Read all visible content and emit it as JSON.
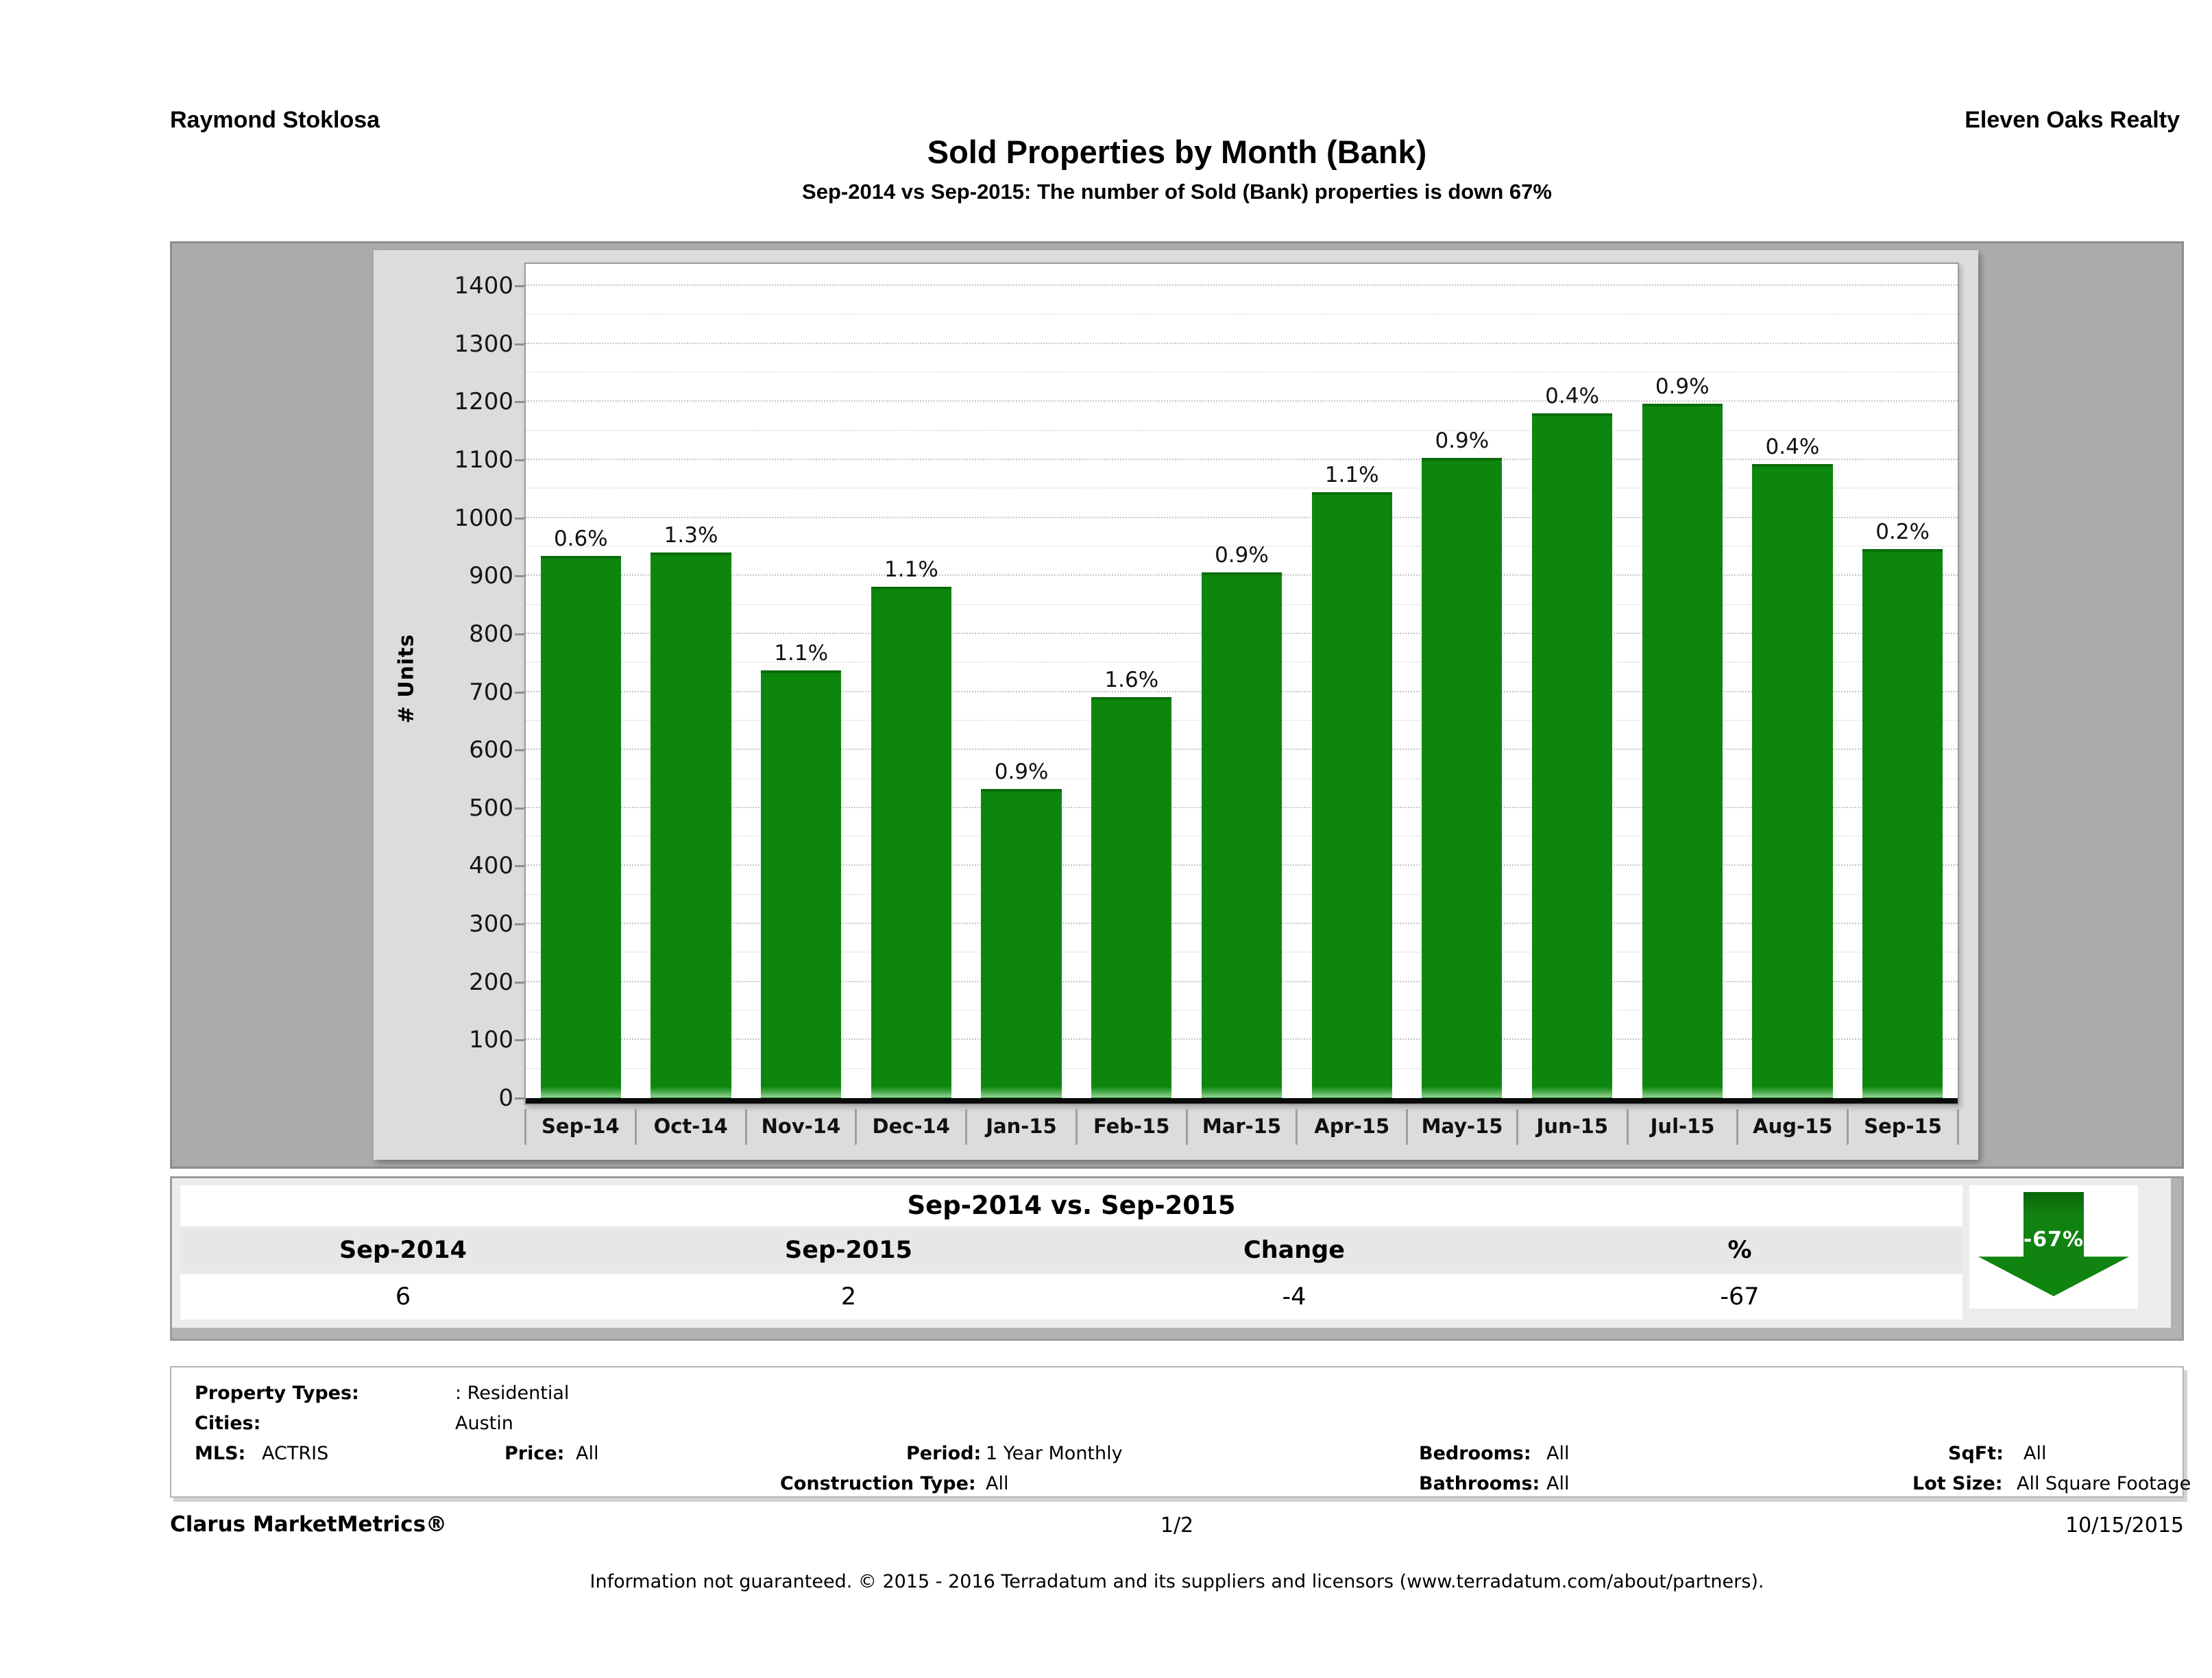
{
  "header": {
    "agent": "Raymond Stoklosa",
    "company": "Eleven Oaks Realty",
    "title": "Sold Properties by Month (Bank)",
    "subtitle": "Sep-2014 vs Sep-2015: The number of Sold (Bank)  properties is down 67%"
  },
  "chart_data": {
    "type": "bar",
    "title": "Sold Properties by Month (Bank)",
    "xlabel": "",
    "ylabel": "# Units",
    "categories": [
      "Sep-14",
      "Oct-14",
      "Nov-14",
      "Dec-14",
      "Jan-15",
      "Feb-15",
      "Mar-15",
      "Apr-15",
      "May-15",
      "Jun-15",
      "Jul-15",
      "Aug-15",
      "Sep-15"
    ],
    "values": [
      935,
      940,
      737,
      882,
      533,
      691,
      906,
      1044,
      1104,
      1181,
      1197,
      1093,
      946
    ],
    "bar_labels": [
      "0.6%",
      "1.3%",
      "1.1%",
      "1.1%",
      "0.9%",
      "1.6%",
      "0.9%",
      "1.1%",
      "0.9%",
      "0.4%",
      "0.9%",
      "0.4%",
      "0.2%"
    ],
    "ylim": [
      0,
      1438
    ],
    "y_tick_max": 1400,
    "y_tick_step": 100,
    "y_minor_step": 50,
    "grid": true,
    "legend_position": "none",
    "bar_color": "#0d860d"
  },
  "comparison_table": {
    "title": "Sep-2014 vs. Sep-2015",
    "headers": [
      "Sep-2014",
      "Sep-2015",
      "Change",
      "%"
    ],
    "values": [
      "6",
      "2",
      "-4",
      "-67"
    ],
    "badge": "-67%",
    "badge_color": "#0f840f"
  },
  "criteria": {
    "property_types_label": "Property Types:",
    "property_types_value": ": Residential",
    "cities_label": "Cities:",
    "cities_value": "Austin",
    "mls_label": "MLS:",
    "mls_value": "ACTRIS",
    "price_label": "Price:",
    "price_value": "All",
    "period_label": "Period:",
    "period_value": "1 Year Monthly",
    "bedrooms_label": "Bedrooms:",
    "bedrooms_value": "All",
    "sqft_label": "SqFt:",
    "sqft_value": "All",
    "construction_label": "Construction Type:",
    "construction_value": "All",
    "bathrooms_label": "Bathrooms:",
    "bathrooms_value": "All",
    "lotsize_label": "Lot Size:",
    "lotsize_value": "All Square Footage"
  },
  "footer": {
    "brand": "Clarus MarketMetrics®",
    "page": "1/2",
    "date": "10/15/2015",
    "disclaimer": "Information not guaranteed. © 2015 - 2016 Terradatum and its suppliers and licensors (www.terradatum.com/about/partners)."
  }
}
